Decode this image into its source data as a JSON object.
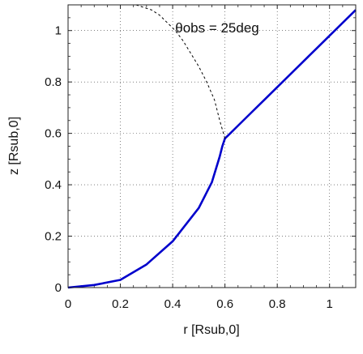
{
  "chart_data": {
    "type": "line",
    "title": "",
    "xlabel": "r [Rsub,0]",
    "ylabel": "z [Rsub,0]",
    "annotation": "θobs = 25deg",
    "xlim": [
      0,
      1.1
    ],
    "ylim": [
      0,
      1.1
    ],
    "xticks": [
      0,
      0.2,
      0.4,
      0.6,
      0.8,
      1
    ],
    "xtick_labels": [
      "0",
      "0.2",
      "0.4",
      "0.6",
      "0.8",
      "1"
    ],
    "yticks": [
      0,
      0.2,
      0.4,
      0.6,
      0.8,
      1
    ],
    "ytick_labels": [
      "0",
      "0.2",
      "0.4",
      "0.6",
      "0.8",
      "1"
    ],
    "grid": true,
    "colors": {
      "solid": "#0000cc",
      "dashed": "#000000",
      "grid": "#333333"
    },
    "series": [
      {
        "style": "solid",
        "x": [
          0,
          0.1,
          0.2,
          0.3,
          0.4,
          0.5,
          0.55,
          0.58,
          0.59,
          0.6,
          0.61,
          0.62,
          0.65,
          0.7,
          0.75,
          0.8,
          0.85,
          0.9,
          0.95,
          1.0,
          1.05,
          1.1
        ],
        "y": [
          0,
          0.01,
          0.03,
          0.09,
          0.18,
          0.31,
          0.41,
          0.51,
          0.55,
          0.58,
          0.59,
          0.6,
          0.63,
          0.68,
          0.73,
          0.78,
          0.83,
          0.88,
          0.93,
          0.98,
          1.03,
          1.08
        ]
      },
      {
        "style": "dashed",
        "x": [
          0.6,
          0.58,
          0.56,
          0.53,
          0.5,
          0.47,
          0.44,
          0.41,
          0.38,
          0.35,
          0.32,
          0.29,
          0.26,
          0.23
        ],
        "y": [
          0.58,
          0.65,
          0.73,
          0.8,
          0.86,
          0.91,
          0.96,
          1.0,
          1.03,
          1.06,
          1.08,
          1.09,
          1.1,
          1.1
        ]
      }
    ]
  }
}
